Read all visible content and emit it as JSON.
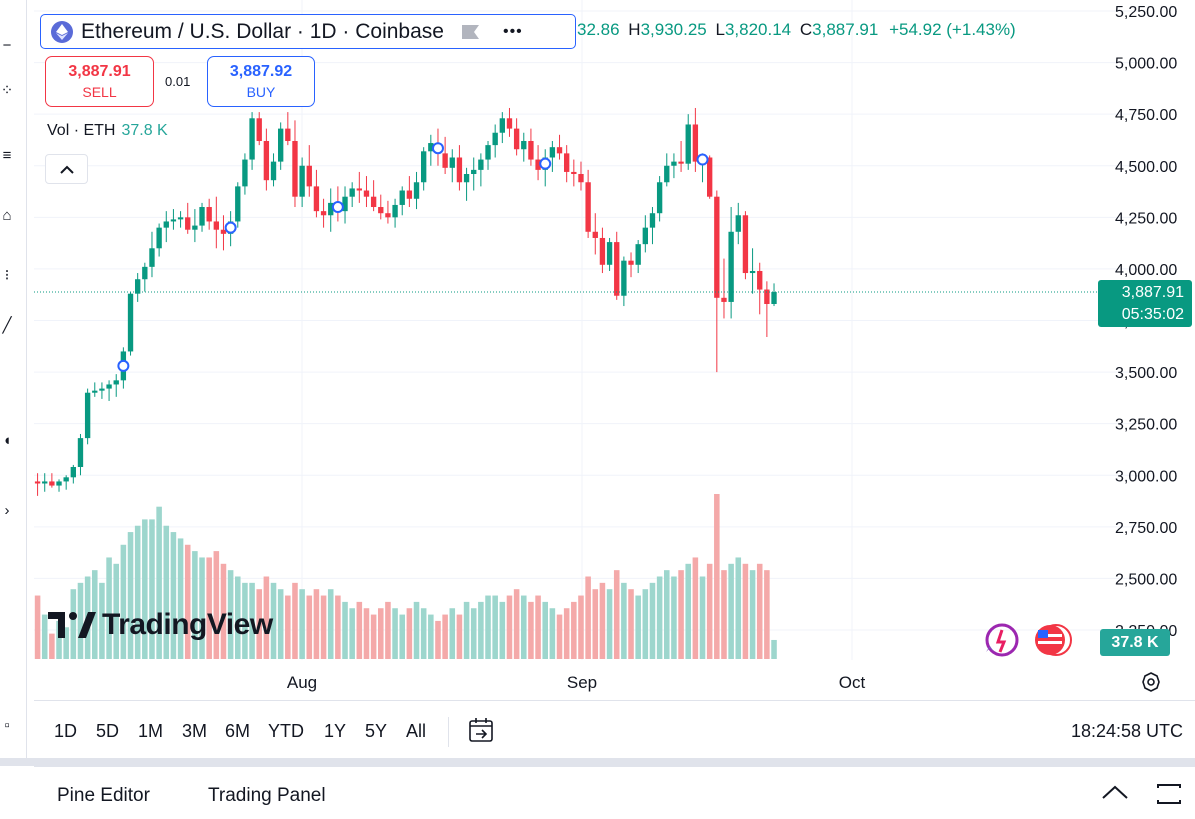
{
  "header": {
    "symbol_title": "Ethereum / U.S. Dollar · 1D · Coinbase",
    "more_icon": "•••",
    "ohlc": {
      "o_fragment": "32.86",
      "h_label": "H",
      "h_value": "3,930.25",
      "l_label": "L",
      "l_value": "3,820.14",
      "c_label": "C",
      "c_value": "3,887.91",
      "change": "+54.92 (+1.43%)"
    }
  },
  "trade": {
    "sell_price": "3,887.91",
    "sell_label": "SELL",
    "spread": "0.01",
    "buy_price": "3,887.92",
    "buy_label": "BUY"
  },
  "volume_legend": {
    "label": "Vol · ETH",
    "value": "37.8 K"
  },
  "brand": {
    "logo_text": "TradingView"
  },
  "price_label": {
    "price": "3,887.91",
    "countdown": "05:35:02"
  },
  "volume_badge": "37.8 K",
  "bottom_bar": {
    "ranges": [
      "1D",
      "5D",
      "1M",
      "3M",
      "6M",
      "YTD",
      "1Y",
      "5Y",
      "All"
    ],
    "clock": "18:24:58 UTC"
  },
  "panel_tabs": {
    "pine_editor": "Pine Editor",
    "trading_panel": "Trading Panel"
  },
  "colors": {
    "up": "#089981",
    "down": "#f23645",
    "vol_up": "#9dd6cd",
    "vol_down": "#f4a9a9",
    "accent": "#2962ff"
  },
  "chart_data": {
    "type": "candlestick",
    "y_axis_ticks": [
      "5,250.00",
      "5,000.00",
      "4,750.00",
      "4,500.00",
      "4,250.00",
      "4,000.00",
      "3,750.00",
      "3,500.00",
      "3,250.00",
      "3,000.00",
      "2,750.00",
      "2,500.00",
      "2,250.00"
    ],
    "x_axis_labels": [
      "Aug",
      "Sep",
      "Oct"
    ],
    "ylim": [
      2150,
      5260
    ],
    "last_price": 3887.91,
    "candles": [
      [
        2970,
        3010,
        2900,
        2960,
        10
      ],
      [
        2960,
        3010,
        2920,
        2970,
        7
      ],
      [
        2970,
        3010,
        2940,
        2950,
        4
      ],
      [
        2950,
        2980,
        2920,
        2970,
        6
      ],
      [
        2970,
        3000,
        2930,
        2990,
        5
      ],
      [
        2990,
        3050,
        2960,
        3040,
        11
      ],
      [
        3040,
        3200,
        3000,
        3180,
        12
      ],
      [
        3180,
        3420,
        3150,
        3400,
        13
      ],
      [
        3400,
        3450,
        3380,
        3410,
        14
      ],
      [
        3410,
        3450,
        3370,
        3420,
        12
      ],
      [
        3420,
        3460,
        3360,
        3440,
        16
      ],
      [
        3440,
        3490,
        3380,
        3460,
        15
      ],
      [
        3460,
        3620,
        3420,
        3600,
        18
      ],
      [
        3600,
        3890,
        3580,
        3880,
        20
      ],
      [
        3880,
        3980,
        3840,
        3950,
        21
      ],
      [
        3950,
        4030,
        3890,
        4010,
        22
      ],
      [
        4010,
        4180,
        3960,
        4100,
        22
      ],
      [
        4100,
        4220,
        4060,
        4200,
        24
      ],
      [
        4200,
        4280,
        4130,
        4230,
        21
      ],
      [
        4230,
        4290,
        4190,
        4240,
        20
      ],
      [
        4240,
        4280,
        4200,
        4250,
        19
      ],
      [
        4250,
        4320,
        4170,
        4190,
        18
      ],
      [
        4190,
        4290,
        4130,
        4210,
        17
      ],
      [
        4210,
        4320,
        4180,
        4300,
        16
      ],
      [
        4300,
        4340,
        4190,
        4230,
        16
      ],
      [
        4230,
        4350,
        4100,
        4190,
        17
      ],
      [
        4190,
        4260,
        4090,
        4170,
        15
      ],
      [
        4170,
        4280,
        4110,
        4230,
        14
      ],
      [
        4230,
        4420,
        4200,
        4400,
        13
      ],
      [
        4400,
        4560,
        4360,
        4530,
        12
      ],
      [
        4530,
        4760,
        4480,
        4730,
        12
      ],
      [
        4730,
        4760,
        4600,
        4620,
        11
      ],
      [
        4620,
        4680,
        4380,
        4430,
        13
      ],
      [
        4430,
        4560,
        4400,
        4520,
        12
      ],
      [
        4520,
        4710,
        4480,
        4680,
        11
      ],
      [
        4680,
        4760,
        4600,
        4620,
        10
      ],
      [
        4620,
        4720,
        4300,
        4350,
        12
      ],
      [
        4350,
        4540,
        4300,
        4500,
        11
      ],
      [
        4500,
        4600,
        4350,
        4400,
        10
      ],
      [
        4400,
        4480,
        4250,
        4280,
        11
      ],
      [
        4280,
        4340,
        4200,
        4260,
        10
      ],
      [
        4260,
        4390,
        4180,
        4320,
        11
      ],
      [
        4320,
        4400,
        4230,
        4280,
        10
      ],
      [
        4280,
        4400,
        4220,
        4350,
        9
      ],
      [
        4350,
        4420,
        4300,
        4390,
        8
      ],
      [
        4390,
        4470,
        4320,
        4380,
        9
      ],
      [
        4380,
        4450,
        4300,
        4350,
        8
      ],
      [
        4350,
        4430,
        4280,
        4300,
        7
      ],
      [
        4300,
        4360,
        4240,
        4270,
        8
      ],
      [
        4270,
        4330,
        4220,
        4250,
        9
      ],
      [
        4250,
        4340,
        4200,
        4310,
        8
      ],
      [
        4310,
        4400,
        4260,
        4380,
        7
      ],
      [
        4380,
        4450,
        4300,
        4340,
        8
      ],
      [
        4340,
        4470,
        4290,
        4420,
        9
      ],
      [
        4420,
        4590,
        4380,
        4570,
        8
      ],
      [
        4570,
        4650,
        4500,
        4610,
        7
      ],
      [
        4610,
        4680,
        4500,
        4560,
        6
      ],
      [
        4560,
        4640,
        4460,
        4490,
        7
      ],
      [
        4490,
        4580,
        4420,
        4540,
        8
      ],
      [
        4540,
        4600,
        4380,
        4420,
        7
      ],
      [
        4420,
        4490,
        4330,
        4460,
        9
      ],
      [
        4460,
        4540,
        4380,
        4480,
        8
      ],
      [
        4480,
        4560,
        4400,
        4530,
        9
      ],
      [
        4530,
        4620,
        4480,
        4600,
        10
      ],
      [
        4600,
        4700,
        4540,
        4660,
        10
      ],
      [
        4660,
        4760,
        4610,
        4730,
        9
      ],
      [
        4730,
        4780,
        4640,
        4680,
        10
      ],
      [
        4680,
        4730,
        4550,
        4580,
        11
      ],
      [
        4580,
        4660,
        4520,
        4620,
        10
      ],
      [
        4620,
        4680,
        4500,
        4530,
        9
      ],
      [
        4530,
        4600,
        4430,
        4480,
        10
      ],
      [
        4480,
        4580,
        4400,
        4540,
        9
      ],
      [
        4540,
        4620,
        4470,
        4590,
        8
      ],
      [
        4590,
        4650,
        4530,
        4560,
        7
      ],
      [
        4560,
        4600,
        4420,
        4470,
        8
      ],
      [
        4470,
        4530,
        4400,
        4460,
        9
      ],
      [
        4460,
        4520,
        4380,
        4420,
        10
      ],
      [
        4420,
        4480,
        4150,
        4180,
        13
      ],
      [
        4180,
        4270,
        4070,
        4150,
        11
      ],
      [
        4150,
        4200,
        3980,
        4020,
        12
      ],
      [
        4020,
        4150,
        3990,
        4130,
        11
      ],
      [
        4130,
        4180,
        3850,
        3870,
        14
      ],
      [
        3870,
        4060,
        3820,
        4040,
        12
      ],
      [
        4040,
        4080,
        3960,
        4020,
        11
      ],
      [
        4020,
        4140,
        3980,
        4120,
        10
      ],
      [
        4120,
        4260,
        4080,
        4200,
        11
      ],
      [
        4200,
        4300,
        4120,
        4270,
        12
      ],
      [
        4270,
        4450,
        4230,
        4420,
        13
      ],
      [
        4420,
        4560,
        4400,
        4500,
        14
      ],
      [
        4500,
        4560,
        4440,
        4520,
        13
      ],
      [
        4520,
        4620,
        4470,
        4510,
        14
      ],
      [
        4510,
        4750,
        4480,
        4700,
        15
      ],
      [
        4700,
        4780,
        4470,
        4520,
        16
      ],
      [
        4520,
        4560,
        4420,
        4540,
        13
      ],
      [
        4540,
        4550,
        4340,
        4350,
        15
      ],
      [
        4350,
        4380,
        3500,
        3860,
        26
      ],
      [
        3860,
        4050,
        3760,
        3840,
        14
      ],
      [
        3840,
        4300,
        3760,
        4180,
        15
      ],
      [
        4180,
        4320,
        4120,
        4260,
        16
      ],
      [
        4260,
        4280,
        3950,
        3980,
        15
      ],
      [
        3980,
        4100,
        3880,
        3990,
        14
      ],
      [
        3990,
        4030,
        3780,
        3900,
        15
      ],
      [
        3900,
        3940,
        3670,
        3830,
        14
      ],
      [
        3830,
        3930,
        3820,
        3888,
        3
      ]
    ],
    "markers_at_index": [
      12,
      27,
      42,
      56,
      71,
      93
    ]
  }
}
